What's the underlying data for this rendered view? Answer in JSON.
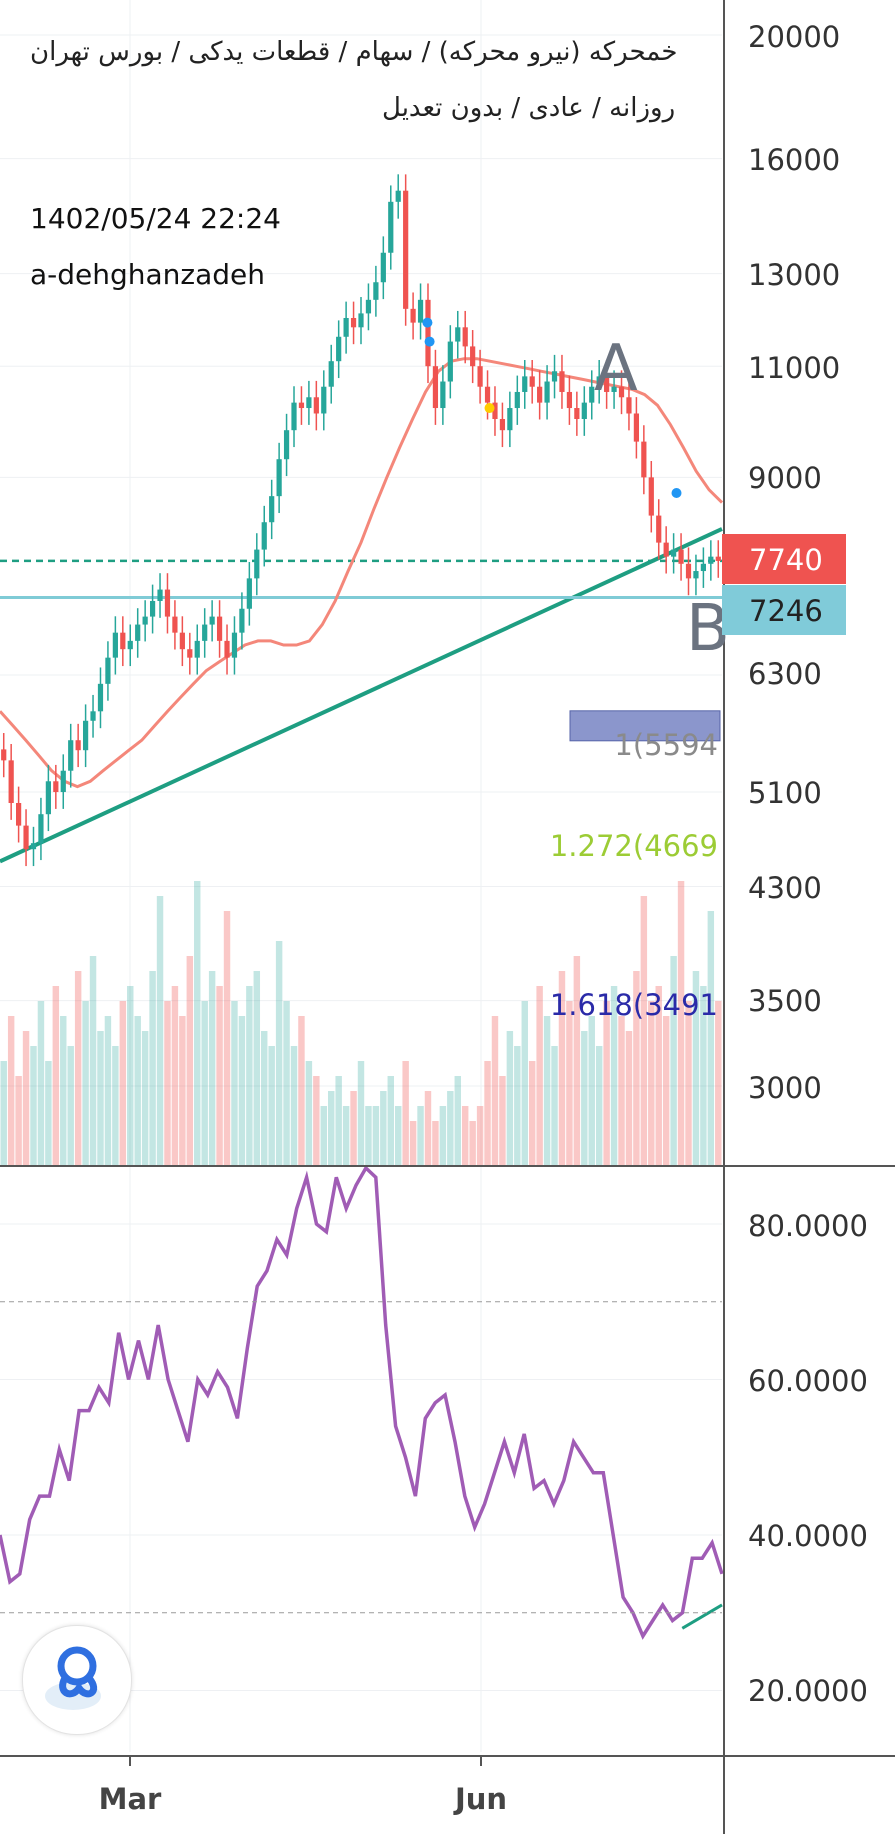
{
  "header": {
    "title_line1": "خمحرکه (نیرو محرکه) / سهام / قطعات یدکی / بورس تهران",
    "title_line2": "روزانه / عادی / بدون تعدیل",
    "timestamp": "1402/05/24 22:24",
    "author": "a-dehghanzadeh"
  },
  "colors": {
    "up": "#26a69a",
    "down": "#ef5350",
    "ma": "#f4877a",
    "trendline": "#1e9e82",
    "support": "#7fcbd6",
    "last_price_bg": "#ef5350",
    "support_bg": "#80cbd9",
    "fib_box": "#8b96cc",
    "fib_1": "#8a8a8a",
    "fib_1272": "#9ccc35",
    "fib_1618": "#2a2aa8",
    "rsi": "#a05cb5",
    "wave_label": "#6b7380"
  },
  "chart_data": [
    {
      "type": "candlestick",
      "panel": "price",
      "y_scale": "log",
      "ylim": [
        3600,
        21000
      ],
      "y_ticks": [
        "20000",
        "16000",
        "13000",
        "11000",
        "9000",
        "6300",
        "5100",
        "4300",
        "3500",
        "3000"
      ],
      "x_ticks": [
        "Mar",
        "Jun"
      ],
      "last_price_label": "7740",
      "support_label": "7246",
      "support_level": 7246,
      "last_price_level": 7740,
      "fib_labels": [
        "1(5594",
        "1.272(4669",
        "1.618(3491"
      ],
      "wave_labels": [
        "A",
        "B"
      ],
      "trendline": {
        "from": [
          0,
          4500
        ],
        "to": [
          1,
          8200
        ]
      },
      "ohlc_close_path": [
        5400,
        5000,
        4800,
        4600,
        4650,
        4900,
        5200,
        5100,
        5300,
        5600,
        5500,
        5800,
        5900,
        6200,
        6500,
        6800,
        6600,
        6700,
        6900,
        7000,
        7200,
        7350,
        7000,
        6800,
        6600,
        6500,
        6700,
        6900,
        7000,
        6700,
        6500,
        6800,
        7100,
        7500,
        7900,
        8300,
        8700,
        9300,
        9800,
        10300,
        10200,
        10400,
        10100,
        10600,
        11100,
        11600,
        12000,
        11800,
        12100,
        12400,
        12800,
        13500,
        14800,
        15100,
        12200,
        11900,
        12400,
        11000,
        10200,
        10700,
        11500,
        11800,
        11400,
        11000,
        10600,
        10300,
        10000,
        9800,
        10200,
        10500,
        10800,
        10600,
        10300,
        10700,
        10900,
        10500,
        10200,
        10000,
        10300,
        10600,
        10800,
        10500,
        10600,
        10400,
        10100,
        9600,
        9000,
        8400,
        8000,
        7800,
        7900,
        7700,
        7500,
        7600,
        7700,
        7800,
        7740
      ],
      "ma_path": [
        5900,
        5750,
        5600,
        5450,
        5300,
        5200,
        5150,
        5200,
        5300,
        5400,
        5500,
        5600,
        5750,
        5900,
        6050,
        6200,
        6350,
        6450,
        6550,
        6650,
        6700,
        6700,
        6650,
        6650,
        6700,
        6900,
        7200,
        7600,
        8000,
        8500,
        9000,
        9500,
        10000,
        10500,
        10900,
        11100,
        11150,
        11150,
        11100,
        11050,
        11000,
        10950,
        10900,
        10850,
        10800,
        10750,
        10700,
        10650,
        10600,
        10550,
        10450,
        10250,
        9900,
        9500,
        9100,
        8800,
        8600
      ],
      "volume_profile": [
        0.35,
        0.5,
        0.3,
        0.45,
        0.4,
        0.55,
        0.35,
        0.6,
        0.5,
        0.4,
        0.65,
        0.55,
        0.7,
        0.45,
        0.5,
        0.4,
        0.55,
        0.6,
        0.5,
        0.45,
        0.65,
        0.9,
        0.55,
        0.6,
        0.5,
        0.7,
        0.95,
        0.55,
        0.65,
        0.6,
        0.85,
        0.55,
        0.5,
        0.6,
        0.65,
        0.45,
        0.4,
        0.75,
        0.55,
        0.4,
        0.5,
        0.35,
        0.3,
        0.2,
        0.25,
        0.3,
        0.2,
        0.25,
        0.35,
        0.2,
        0.2,
        0.25,
        0.3,
        0.2,
        0.35,
        0.15,
        0.2,
        0.25,
        0.15,
        0.2,
        0.25,
        0.3,
        0.2,
        0.15,
        0.2
      ],
      "markers": [
        {
          "x": 0.595,
          "y": 11500,
          "color": "#2196f3"
        },
        {
          "x": 0.592,
          "y": 11900,
          "color": "#2196f3"
        },
        {
          "x": 0.678,
          "y": 10200,
          "color": "#ffcc00"
        },
        {
          "x": 0.937,
          "y": 8750,
          "color": "#2196f3"
        }
      ]
    },
    {
      "type": "line",
      "panel": "rsi",
      "ylim": [
        14,
        88
      ],
      "y_ticks": [
        "80.0000",
        "60.0000",
        "40.0000",
        "20.0000"
      ],
      "levels": [
        70,
        30
      ],
      "values": [
        40,
        34,
        35,
        42,
        45,
        45,
        51,
        47,
        56,
        56,
        59,
        57,
        66,
        60,
        65,
        60,
        67,
        60,
        56,
        52,
        60,
        58,
        61,
        59,
        55,
        64,
        72,
        74,
        78,
        76,
        82,
        86,
        80,
        79,
        86,
        82,
        85,
        88,
        86,
        67,
        54,
        50,
        45,
        55,
        57,
        58,
        52,
        45,
        41,
        44,
        48,
        52,
        48,
        53,
        46,
        47,
        44,
        47,
        52,
        50,
        48,
        48,
        40,
        32,
        30,
        27,
        29,
        31,
        29,
        30,
        37,
        37,
        39,
        35
      ],
      "trendline": {
        "from": [
          0.945,
          28
        ],
        "to": [
          1,
          31
        ]
      }
    }
  ]
}
